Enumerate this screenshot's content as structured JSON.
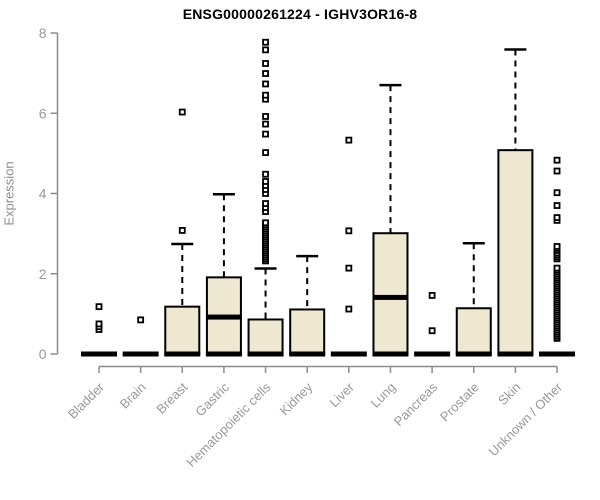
{
  "title": "ENSG00000261224 - IGHV3OR16-8",
  "colors": {
    "background": "#FFFFFF",
    "box_fill": "#EDE8CF",
    "box_stroke": "#000000",
    "axis": "#8C8C8C",
    "tick_label": "#999999",
    "title_text": "#000000"
  },
  "chart_data": {
    "type": "boxplot",
    "title": "ENSG00000261224 - IGHV3OR16-8",
    "xlabel": "",
    "ylabel": "Expression",
    "ylim": [
      0,
      8
    ],
    "yticks": [
      0,
      2,
      4,
      6,
      8
    ],
    "grid": false,
    "legend": "none",
    "categories": [
      "Bladder",
      "Brain",
      "Breast",
      "Gastric",
      "Hematopoietic cells",
      "Kidney",
      "Liver",
      "Lung",
      "Pancreas",
      "Prostate",
      "Skin",
      "Unknown / Other"
    ],
    "series": [
      {
        "name": "Bladder",
        "whisker_low": 0,
        "q1": 0,
        "median": 0,
        "q3": 0,
        "whisker_high": 0,
        "outliers": [
          0.61,
          0.68,
          0.75,
          1.18
        ]
      },
      {
        "name": "Brain",
        "whisker_low": 0,
        "q1": 0,
        "median": 0,
        "q3": 0,
        "whisker_high": 0,
        "outliers": [
          0.85
        ]
      },
      {
        "name": "Breast",
        "whisker_low": 0,
        "q1": 0,
        "median": 0,
        "q3": 1.18,
        "whisker_high": 2.74,
        "outliers": [
          3.08,
          6.03
        ]
      },
      {
        "name": "Gastric",
        "whisker_low": 0,
        "q1": 0,
        "median": 0.92,
        "q3": 1.91,
        "whisker_high": 3.98,
        "outliers": []
      },
      {
        "name": "Hematopoietic cells",
        "whisker_low": 0,
        "q1": 0,
        "median": 0,
        "q3": 0.86,
        "whisker_high": 2.13,
        "outliers": [
          2.32,
          2.37,
          2.42,
          2.47,
          2.52,
          2.57,
          2.62,
          2.67,
          2.72,
          2.77,
          2.82,
          2.87,
          2.92,
          2.97,
          3.02,
          3.07,
          3.12,
          3.17,
          3.22,
          3.27,
          3.55,
          3.65,
          3.75,
          4.0,
          4.1,
          4.2,
          4.3,
          4.48,
          5.02,
          5.48,
          5.73,
          5.92,
          6.35,
          6.45,
          6.73,
          6.99,
          7.24,
          7.58,
          7.77
        ]
      },
      {
        "name": "Kidney",
        "whisker_low": 0,
        "q1": 0,
        "median": 0,
        "q3": 1.11,
        "whisker_high": 2.44,
        "outliers": []
      },
      {
        "name": "Liver",
        "whisker_low": 0,
        "q1": 0,
        "median": 0,
        "q3": 0,
        "whisker_high": 0,
        "outliers": [
          1.12,
          2.14,
          3.07,
          5.33
        ]
      },
      {
        "name": "Lung",
        "whisker_low": 0,
        "q1": 0,
        "median": 1.41,
        "q3": 3.01,
        "whisker_high": 6.7,
        "outliers": []
      },
      {
        "name": "Pancreas",
        "whisker_low": 0,
        "q1": 0,
        "median": 0,
        "q3": 0,
        "whisker_high": 0,
        "outliers": [
          0.58,
          1.46
        ]
      },
      {
        "name": "Prostate",
        "whisker_low": 0,
        "q1": 0,
        "median": 0,
        "q3": 1.14,
        "whisker_high": 2.76,
        "outliers": []
      },
      {
        "name": "Skin",
        "whisker_low": 0,
        "q1": 0,
        "median": 0,
        "q3": 5.08,
        "whisker_high": 7.59,
        "outliers": []
      },
      {
        "name": "Unknown / Other",
        "whisker_low": 0,
        "q1": 0,
        "median": 0,
        "q3": 0,
        "whisker_high": 0,
        "outliers": [
          0.39,
          0.44,
          0.49,
          0.54,
          0.59,
          0.64,
          0.69,
          0.74,
          0.79,
          0.84,
          0.89,
          0.94,
          0.99,
          1.04,
          1.09,
          1.14,
          1.19,
          1.24,
          1.29,
          1.34,
          1.39,
          1.44,
          1.49,
          1.54,
          1.59,
          1.64,
          1.69,
          1.74,
          1.79,
          1.84,
          1.89,
          1.94,
          1.99,
          2.04,
          2.09,
          2.14,
          2.37,
          2.42,
          2.47,
          2.52,
          2.58,
          2.63,
          2.68,
          3.33,
          3.4,
          3.7,
          4.02,
          4.56,
          4.83
        ]
      }
    ]
  }
}
